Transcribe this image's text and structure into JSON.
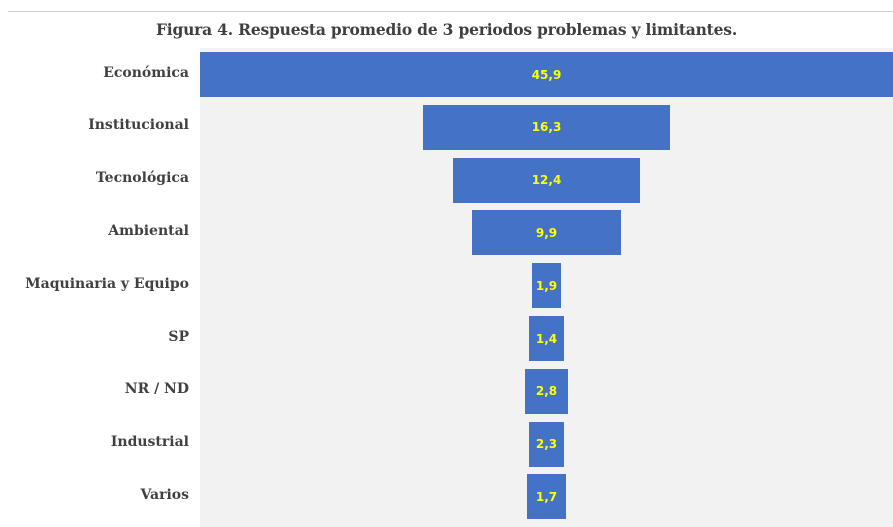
{
  "chart_data": {
    "type": "bar",
    "orientation": "horizontal-funnel",
    "title": "Figura 4. Respuesta promedio de 3 periodos problemas y limitantes.",
    "categories": [
      "Económica",
      "Institucional",
      "Tecnológica",
      "Ambiental",
      "Maquinaria y Equipo",
      "SP",
      "NR / ND",
      "Industrial",
      "Varios"
    ],
    "values": [
      45.9,
      16.3,
      12.4,
      9.9,
      1.9,
      1.4,
      2.8,
      2.3,
      1.7
    ],
    "value_labels": [
      "45,9",
      "16,3",
      "12,4",
      "9,9",
      "1,9",
      "1,4",
      "2,8",
      "2,3",
      "1,7"
    ],
    "xlabel": "",
    "ylabel": "",
    "legend": "none",
    "grid": false,
    "colors": {
      "bar": "#4472c4",
      "data_label": "#ffff00",
      "plot_background": "#f2f2f2"
    }
  }
}
